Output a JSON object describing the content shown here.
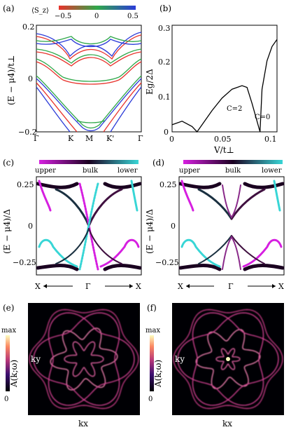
{
  "panels": {
    "a": {
      "label": "(a)",
      "colorbar": {
        "title": "⟨S_z⟩",
        "ticks": [
          "−0.5",
          "0",
          "0.5"
        ],
        "colors": [
          "#e8322b",
          "#2fa84a",
          "#2b3bd8"
        ]
      },
      "ylabel": "(E − μ4)/t⊥",
      "yticks": [
        "0.2",
        "0",
        "−0.2"
      ],
      "xticks": [
        "Γ",
        "K",
        "M",
        "K'",
        "Γ"
      ]
    },
    "b": {
      "label": "(b)",
      "ylabel": "Eg/2Δ",
      "xlabel": "V/t⊥",
      "yticks": [
        "0.3",
        "0.2",
        "0.1",
        "0"
      ],
      "xticks": [
        "0",
        "0.05",
        "0.1"
      ],
      "annotations": [
        "C=2",
        "C=0"
      ]
    },
    "c": {
      "label": "(c)",
      "colorbar": {
        "left": "upper",
        "mid": "bulk",
        "right": "lower",
        "colors": [
          "#d61fe0",
          "#2a0030",
          "#38d6d6"
        ]
      },
      "ylabel": "(E − μ4)/Δ",
      "yticks": [
        "0.25",
        "0",
        "−0.25"
      ],
      "xticks": [
        "X",
        "Γ",
        "X"
      ]
    },
    "d": {
      "label": "(d)",
      "colorbar": {
        "left": "upper",
        "mid": "bulk",
        "right": "lower"
      },
      "ylabel": "(E − μ4)/Δ",
      "yticks": [
        "0.25",
        "0",
        "−0.25"
      ],
      "xticks": [
        "X",
        "Γ",
        "X"
      ]
    },
    "e": {
      "label": "(e)",
      "cbar_top": "max",
      "cbar_bottom": "0",
      "ylabel": "A(k;ω)",
      "inner_ylabel": "ky",
      "xlabel": "kx"
    },
    "f": {
      "label": "(f)",
      "cbar_top": "max",
      "cbar_bottom": "0",
      "ylabel": "A(k;ω)",
      "inner_ylabel": "ky",
      "xlabel": "kx"
    }
  },
  "chart_data": [
    {
      "type": "line",
      "panel": "b",
      "series": [
        {
          "x": [
            0,
            0.01,
            0.02,
            0.025,
            0.03,
            0.04,
            0.05,
            0.06,
            0.07,
            0.075,
            0.08,
            0.085,
            0.088
          ],
          "y": [
            0.02,
            0.03,
            0.015,
            0.0,
            0.02,
            0.06,
            0.095,
            0.12,
            0.13,
            0.125,
            0.08,
            0.03,
            0.0
          ]
        },
        {
          "x": [
            0.088,
            0.09,
            0.095,
            0.1,
            0.105
          ],
          "y": [
            0.0,
            0.12,
            0.2,
            0.24,
            0.26
          ]
        }
      ],
      "xlim": [
        0,
        0.105
      ],
      "ylim": [
        0,
        0.3
      ]
    }
  ]
}
